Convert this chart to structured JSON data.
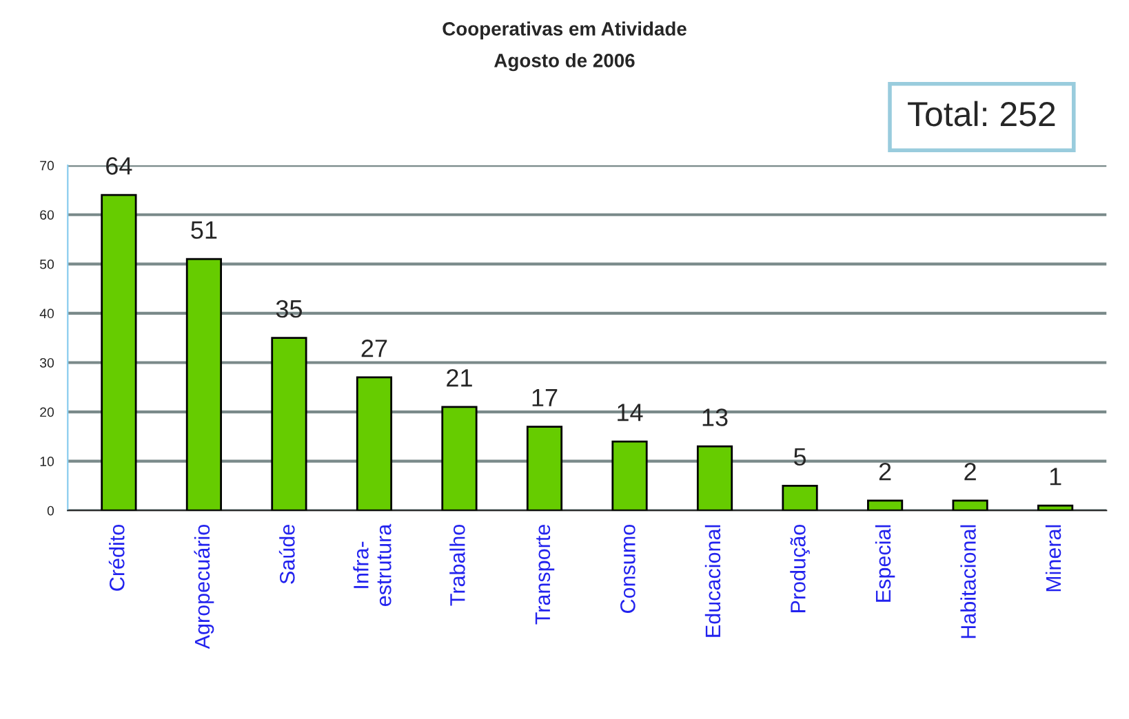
{
  "chart_data": {
    "type": "bar",
    "title": "Cooperativas em Atividade\nAgosto de 2006",
    "categories": [
      "Crédito",
      "Agropecuário",
      "Saúde",
      "Infra-\nestrutura",
      "Trabalho",
      "Transporte",
      "Consumo",
      "Educacional",
      "Produção",
      "Especial",
      "Habitacional",
      "Mineral"
    ],
    "values": [
      64,
      51,
      35,
      27,
      21,
      17,
      14,
      13,
      5,
      2,
      2,
      1
    ],
    "color": "#66cc00",
    "ylim": [
      0,
      70
    ],
    "yticks": [
      0,
      10,
      20,
      30,
      40,
      50,
      60,
      70
    ],
    "grid": "y",
    "data_labels": true,
    "annotations": [
      "Total: 252"
    ]
  }
}
